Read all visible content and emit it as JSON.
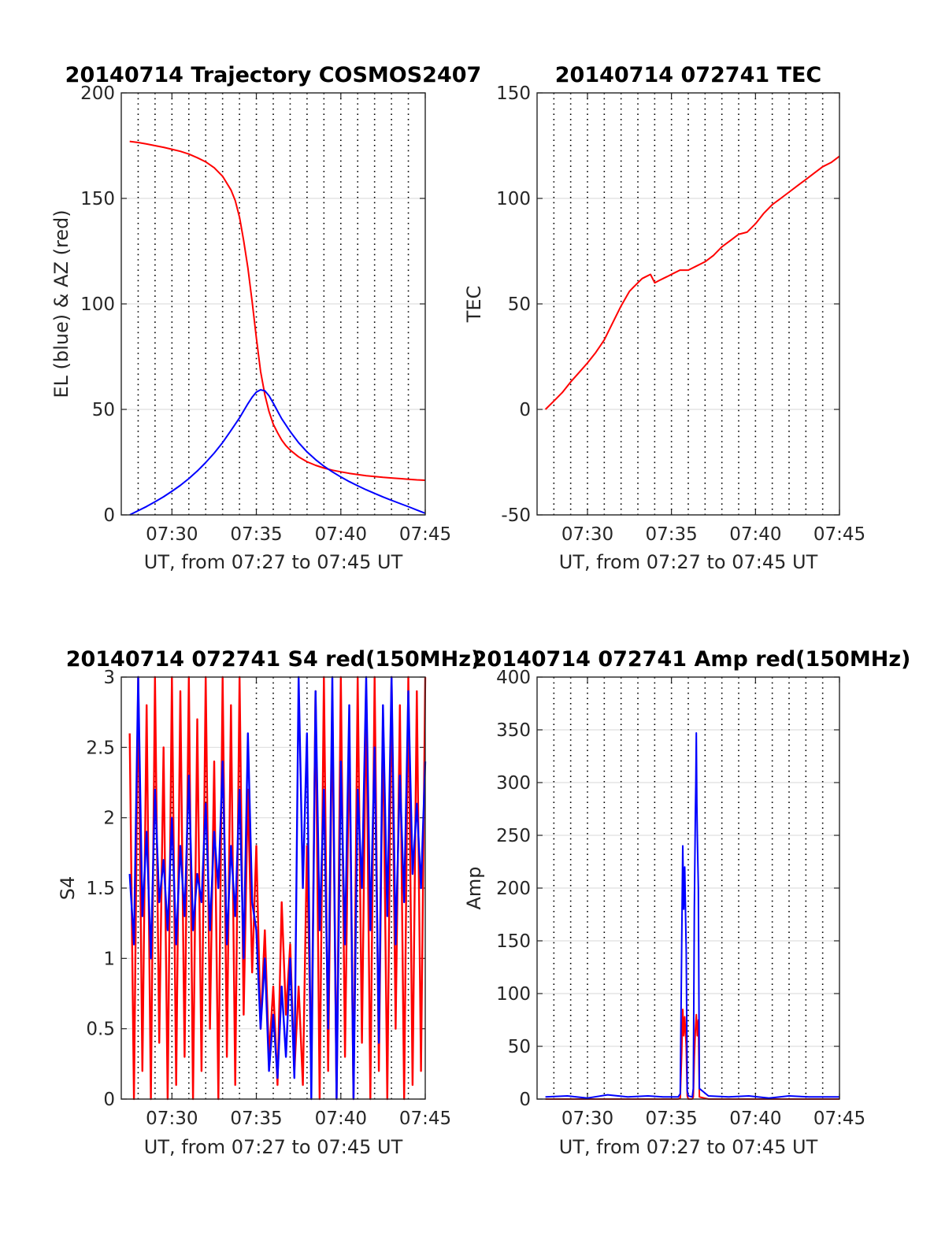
{
  "chart_data": [
    {
      "type": "line",
      "title": "20140714 Trajectory COSMOS2407",
      "xlabel": "UT, from 07:27 to 07:45 UT",
      "ylabel": "EL (blue) & AZ (red)",
      "xlim": [
        7.45,
        7.75
      ],
      "ylim": [
        0,
        200
      ],
      "x_ticks": [
        {
          "v": 7.5,
          "label": "07:30"
        },
        {
          "v": 7.5833,
          "label": "07:35"
        },
        {
          "v": 7.6667,
          "label": "07:40"
        },
        {
          "v": 7.75,
          "label": "07:45"
        }
      ],
      "y_ticks": [
        "0",
        "50",
        "100",
        "150",
        "200"
      ],
      "grid": true,
      "series": [
        {
          "color": "#ff0000",
          "x": [
            7.4583,
            7.4667,
            7.475,
            7.4833,
            7.4917,
            7.5,
            7.5083,
            7.5167,
            7.525,
            7.5333,
            7.5417,
            7.55,
            7.5583,
            7.5625,
            7.5667,
            7.5708,
            7.575,
            7.5792,
            7.5833,
            7.5875,
            7.5917,
            7.5958,
            7.6,
            7.6042,
            7.6083,
            7.6125,
            7.6167,
            7.625,
            7.6333,
            7.6417,
            7.65,
            7.6583,
            7.6667,
            7.675,
            7.6833,
            7.6917,
            7.7,
            7.7083,
            7.7167,
            7.725,
            7.7333,
            7.7417,
            7.75
          ],
          "y": [
            177,
            176.5,
            175.8,
            175,
            174.2,
            173.3,
            172.3,
            171,
            169.3,
            167.3,
            164.5,
            160.5,
            154,
            149,
            141,
            130,
            117,
            101,
            84,
            68,
            57,
            49,
            43,
            39,
            35.5,
            32.8,
            30.7,
            27.5,
            25.2,
            23.5,
            22.2,
            21.2,
            20.4,
            19.7,
            19.1,
            18.6,
            18.2,
            17.8,
            17.5,
            17.2,
            16.9,
            16.6,
            16.4
          ]
        },
        {
          "color": "#0000ff",
          "x": [
            7.4583,
            7.4667,
            7.475,
            7.4833,
            7.4917,
            7.5,
            7.5083,
            7.5167,
            7.525,
            7.5333,
            7.5417,
            7.55,
            7.5583,
            7.5667,
            7.5708,
            7.575,
            7.5792,
            7.5833,
            7.5875,
            7.5917,
            7.5958,
            7.6,
            7.6042,
            7.6083,
            7.6167,
            7.625,
            7.6333,
            7.6417,
            7.65,
            7.6583,
            7.6667,
            7.675,
            7.6833,
            7.6917,
            7.7,
            7.7083,
            7.7167,
            7.725,
            7.7333,
            7.7417,
            7.75
          ],
          "y": [
            0,
            2,
            4,
            6.2,
            8.6,
            11.2,
            14,
            17.2,
            20.8,
            24.8,
            29.3,
            34.3,
            40,
            46,
            49.3,
            52.7,
            55.8,
            58.2,
            59.3,
            58.8,
            56.5,
            53,
            49.2,
            45.6,
            39.5,
            34.2,
            29.9,
            26.2,
            23.1,
            20.4,
            18,
            15.8,
            13.8,
            11.9,
            10.2,
            8.5,
            6.9,
            5.4,
            3.9,
            2.3,
            0.8
          ]
        }
      ]
    },
    {
      "type": "line",
      "title": "20140714 072741 TEC",
      "xlabel": "UT, from 07:27 to 07:45 UT",
      "ylabel": "TEC",
      "xlim": [
        7.45,
        7.75
      ],
      "ylim": [
        -50,
        150
      ],
      "x_ticks": [
        {
          "v": 7.5,
          "label": "07:30"
        },
        {
          "v": 7.5833,
          "label": "07:35"
        },
        {
          "v": 7.6667,
          "label": "07:40"
        },
        {
          "v": 7.75,
          "label": "07:45"
        }
      ],
      "y_ticks": [
        "-50",
        "0",
        "50",
        "100",
        "150"
      ],
      "grid": true,
      "series": [
        {
          "color": "#ff0000",
          "x": [
            7.4583,
            7.4667,
            7.475,
            7.4833,
            7.4917,
            7.5,
            7.5083,
            7.5167,
            7.525,
            7.5333,
            7.5417,
            7.5458,
            7.55,
            7.5542,
            7.5583,
            7.5625,
            7.5667,
            7.5708,
            7.575,
            7.5792,
            7.5833,
            7.5875,
            7.5917,
            7.6,
            7.6083,
            7.6167,
            7.625,
            7.6333,
            7.6417,
            7.65,
            7.6583,
            7.6667,
            7.675,
            7.6833,
            7.6917,
            7.7,
            7.7083,
            7.7167,
            7.725,
            7.7333,
            7.7417,
            7.75
          ],
          "y": [
            0,
            4,
            8,
            13,
            17.5,
            22,
            27,
            33,
            41,
            49,
            56,
            58,
            60,
            62,
            63,
            64,
            60,
            61,
            62,
            63,
            64,
            65,
            66,
            66,
            68,
            70,
            73,
            77,
            80,
            83,
            84,
            88,
            93,
            97,
            100,
            103,
            106,
            109,
            112,
            115,
            117,
            120
          ]
        }
      ]
    },
    {
      "type": "line",
      "title": "20140714 072741 S4 red(150MHz)",
      "xlabel": "UT, from 07:27 to 07:45 UT",
      "ylabel": "S4",
      "xlim": [
        7.45,
        7.75
      ],
      "ylim": [
        0,
        3
      ],
      "x_ticks": [
        {
          "v": 7.5,
          "label": "07:30"
        },
        {
          "v": 7.5833,
          "label": "07:35"
        },
        {
          "v": 7.6667,
          "label": "07:40"
        },
        {
          "v": 7.75,
          "label": "07:45"
        }
      ],
      "y_ticks": [
        "0",
        "0.5",
        "1",
        "1.5",
        "2",
        "2.5",
        "3"
      ],
      "grid": true,
      "series": [
        {
          "color": "#ff0000",
          "x": [
            7.4583,
            7.4625,
            7.4667,
            7.4708,
            7.475,
            7.4792,
            7.4833,
            7.4875,
            7.4917,
            7.4958,
            7.5,
            7.5042,
            7.5083,
            7.5125,
            7.5167,
            7.5208,
            7.525,
            7.5292,
            7.5333,
            7.5375,
            7.5417,
            7.5458,
            7.55,
            7.5542,
            7.5583,
            7.5625,
            7.5667,
            7.5708,
            7.575,
            7.5792,
            7.5833,
            7.5875,
            7.5917,
            7.5958,
            7.6,
            7.6042,
            7.6083,
            7.6125,
            7.6167,
            7.6208,
            7.625,
            7.6292,
            7.6333,
            7.6375,
            7.6417,
            7.6458,
            7.65,
            7.6542,
            7.6583,
            7.6625,
            7.6667,
            7.6708,
            7.675,
            7.6792,
            7.6833,
            7.6875,
            7.6917,
            7.6958,
            7.7,
            7.7042,
            7.7083,
            7.7125,
            7.7167,
            7.7208,
            7.725,
            7.7292,
            7.7333,
            7.7375,
            7.7417,
            7.7458,
            7.75
          ],
          "y": [
            2.6,
            0,
            3,
            0.2,
            2.8,
            0,
            3,
            0.4,
            2.5,
            0,
            3,
            0.1,
            2.9,
            0.3,
            3,
            0,
            2.7,
            0.2,
            3,
            0.5,
            2.4,
            0,
            3,
            0.3,
            2.8,
            0.1,
            3,
            0.6,
            2.2,
            0.9,
            1.8,
            0.5,
            1.2,
            0.3,
            0.8,
            0.1,
            1.4,
            0.6,
            1.1,
            0.2,
            0.8,
            0.1,
            1.8,
            0.2,
            2.9,
            0,
            3,
            0.2,
            2.8,
            0,
            3,
            0.3,
            2.6,
            0,
            3,
            0.4,
            2.9,
            0,
            3,
            0.2,
            2.7,
            0,
            3,
            0.5,
            2.8,
            0,
            3,
            0.1,
            2.9,
            0.2,
            3
          ]
        },
        {
          "color": "#0000ff",
          "x": [
            7.4583,
            7.4625,
            7.4667,
            7.4708,
            7.475,
            7.4792,
            7.4833,
            7.4875,
            7.4917,
            7.4958,
            7.5,
            7.5042,
            7.5083,
            7.5125,
            7.5167,
            7.5208,
            7.525,
            7.5292,
            7.5333,
            7.5375,
            7.5417,
            7.5458,
            7.55,
            7.5542,
            7.5583,
            7.5625,
            7.5667,
            7.5708,
            7.575,
            7.5792,
            7.5833,
            7.5875,
            7.5917,
            7.5958,
            7.6,
            7.6042,
            7.6083,
            7.6125,
            7.6167,
            7.6208,
            7.625,
            7.6292,
            7.6333,
            7.6375,
            7.6417,
            7.6458,
            7.65,
            7.6542,
            7.6583,
            7.6625,
            7.6667,
            7.6708,
            7.675,
            7.6792,
            7.6833,
            7.6875,
            7.6917,
            7.6958,
            7.7,
            7.7042,
            7.7083,
            7.7125,
            7.7167,
            7.7208,
            7.725,
            7.7292,
            7.7333,
            7.7375,
            7.7417,
            7.7458,
            7.75
          ],
          "y": [
            1.6,
            1.1,
            3,
            1.3,
            1.9,
            1.0,
            2.2,
            1.4,
            1.7,
            1.2,
            2.0,
            1.1,
            1.8,
            1.3,
            2.3,
            1.2,
            1.6,
            1.4,
            2.1,
            1.2,
            1.9,
            1.5,
            2.4,
            1.1,
            1.8,
            1.3,
            2.2,
            1.0,
            2.6,
            1.4,
            1.2,
            0.5,
            1.0,
            0.2,
            0.6,
            0.15,
            0.8,
            0.3,
            1.0,
            0.15,
            3,
            1.5,
            2.6,
            0,
            2.9,
            1.2,
            2.2,
            0.5,
            3,
            0,
            2.4,
            1.1,
            2.8,
            0,
            2.2,
            1.5,
            3,
            1.2,
            2.5,
            0.4,
            2.8,
            1.3,
            3,
            1.1,
            2.3,
            1.4,
            2.9,
            1.6,
            2.1,
            1.5,
            2.4
          ]
        }
      ]
    },
    {
      "type": "line",
      "title": "20140714 072741 Amp red(150MHz)",
      "xlabel": "UT, from 07:27 to 07:45 UT",
      "ylabel": "Amp",
      "xlim": [
        7.45,
        7.75
      ],
      "ylim": [
        0,
        400
      ],
      "x_ticks": [
        {
          "v": 7.5,
          "label": "07:30"
        },
        {
          "v": 7.5833,
          "label": "07:35"
        },
        {
          "v": 7.6667,
          "label": "07:40"
        },
        {
          "v": 7.75,
          "label": "07:45"
        }
      ],
      "y_ticks": [
        "0",
        "50",
        "100",
        "150",
        "200",
        "250",
        "300",
        "350",
        "400"
      ],
      "grid": true,
      "series": [
        {
          "color": "#ff0000",
          "x": [
            7.4583,
            7.59,
            7.592,
            7.5935,
            7.5945,
            7.5955,
            7.5965,
            7.598,
            7.599,
            7.6,
            7.604,
            7.605,
            7.606,
            7.607,
            7.608,
            7.609,
            7.61,
            7.611,
            7.62,
            7.75
          ],
          "y": [
            0,
            0,
            1,
            45,
            85,
            60,
            78,
            50,
            3,
            0,
            0,
            2,
            40,
            65,
            80,
            60,
            75,
            2,
            0,
            0
          ]
        },
        {
          "color": "#0000ff",
          "x": [
            7.4583,
            7.48,
            7.5,
            7.52,
            7.54,
            7.56,
            7.575,
            7.59,
            7.592,
            7.5935,
            7.5945,
            7.5955,
            7.5965,
            7.597,
            7.598,
            7.599,
            7.6,
            7.604,
            7.605,
            7.606,
            7.607,
            7.6075,
            7.608,
            7.6085,
            7.609,
            7.61,
            7.611,
            7.62,
            7.64,
            7.66,
            7.68,
            7.7,
            7.72,
            7.75
          ],
          "y": [
            2,
            3,
            1,
            4,
            2,
            3,
            2,
            2,
            5,
            150,
            240,
            180,
            220,
            190,
            140,
            8,
            3,
            2,
            10,
            180,
            270,
            300,
            347,
            280,
            250,
            200,
            10,
            3,
            2,
            3,
            1,
            3,
            2,
            2
          ]
        }
      ]
    }
  ]
}
